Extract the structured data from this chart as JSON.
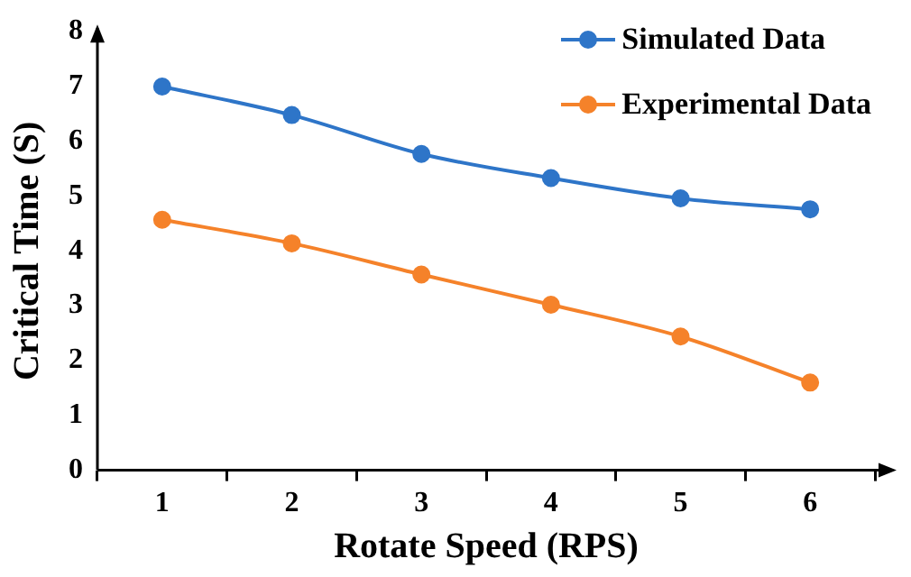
{
  "chart_data": {
    "type": "line",
    "xlabel": "Rotate Speed (RPS)",
    "ylabel": "Critical Time (S)",
    "categories": [
      "1",
      "2",
      "3",
      "4",
      "5",
      "6"
    ],
    "series": [
      {
        "name": "Simulated Data",
        "color": "#2e75c8",
        "values": [
          7.0,
          6.48,
          5.77,
          5.33,
          4.96,
          4.76
        ]
      },
      {
        "name": "Experimental Data",
        "color": "#f5822a",
        "values": [
          4.57,
          4.14,
          3.57,
          3.02,
          2.44,
          1.6
        ]
      }
    ],
    "ylim": [
      0,
      8
    ],
    "yticks": [
      0,
      1,
      2,
      3,
      4,
      5,
      6,
      7,
      8
    ],
    "grid": false,
    "legend": "top right",
    "marker": "circle",
    "line_style": "solid"
  }
}
